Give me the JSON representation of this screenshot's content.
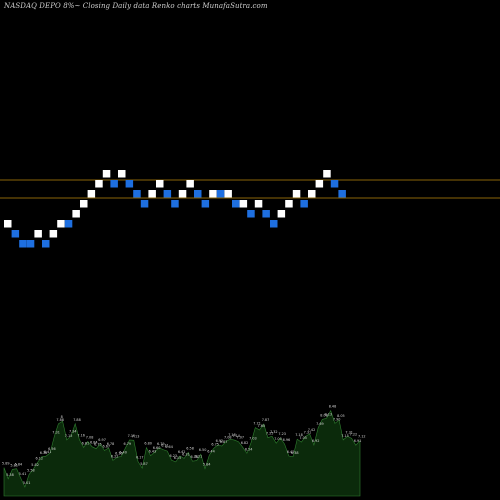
{
  "title": "NASDAQ DEPO 8%~  Closing Daily data  Renko  charts MunafaSutra.com",
  "colors": {
    "background": "#000000",
    "up_brick": "#ffffff",
    "down_brick": "#1e6fe0",
    "reference_line": "#b8860b",
    "volume_fill": "#0b2a0b",
    "volume_edge": "#2f7f2f",
    "volume_label": "#d6d6d6"
  },
  "chart_data": [
    {
      "type": "renko",
      "title": "NASDAQ DEPO 8%~  Closing Daily data  Renko  charts MunafaSutra.com",
      "reference_lines": [
        12.5,
        11.5
      ],
      "bricks": [
        {
          "value": 10.5,
          "dir": "up"
        },
        {
          "value": 10.0,
          "dir": "down"
        },
        {
          "value": 9.5,
          "dir": "down"
        },
        {
          "value": 9.5,
          "dir": "down"
        },
        {
          "value": 10.0,
          "dir": "up"
        },
        {
          "value": 9.5,
          "dir": "down"
        },
        {
          "value": 10.0,
          "dir": "up"
        },
        {
          "value": 10.5,
          "dir": "up"
        },
        {
          "value": 10.5,
          "dir": "down"
        },
        {
          "value": 11.0,
          "dir": "up"
        },
        {
          "value": 11.5,
          "dir": "up"
        },
        {
          "value": 12.0,
          "dir": "up"
        },
        {
          "value": 12.5,
          "dir": "up"
        },
        {
          "value": 13.0,
          "dir": "up"
        },
        {
          "value": 12.5,
          "dir": "down"
        },
        {
          "value": 13.0,
          "dir": "up"
        },
        {
          "value": 12.5,
          "dir": "down"
        },
        {
          "value": 12.0,
          "dir": "down"
        },
        {
          "value": 11.5,
          "dir": "down"
        },
        {
          "value": 12.0,
          "dir": "up"
        },
        {
          "value": 12.5,
          "dir": "up"
        },
        {
          "value": 12.0,
          "dir": "down"
        },
        {
          "value": 11.5,
          "dir": "down"
        },
        {
          "value": 12.0,
          "dir": "up"
        },
        {
          "value": 12.5,
          "dir": "up"
        },
        {
          "value": 12.0,
          "dir": "down"
        },
        {
          "value": 11.5,
          "dir": "down"
        },
        {
          "value": 12.0,
          "dir": "up"
        },
        {
          "value": 12.0,
          "dir": "down"
        },
        {
          "value": 12.0,
          "dir": "up"
        },
        {
          "value": 11.5,
          "dir": "down"
        },
        {
          "value": 11.5,
          "dir": "up"
        },
        {
          "value": 11.0,
          "dir": "down"
        },
        {
          "value": 11.5,
          "dir": "up"
        },
        {
          "value": 11.0,
          "dir": "down"
        },
        {
          "value": 10.5,
          "dir": "down"
        },
        {
          "value": 11.0,
          "dir": "up"
        },
        {
          "value": 11.5,
          "dir": "up"
        },
        {
          "value": 12.0,
          "dir": "up"
        },
        {
          "value": 11.5,
          "dir": "down"
        },
        {
          "value": 12.0,
          "dir": "up"
        },
        {
          "value": 12.5,
          "dir": "up"
        },
        {
          "value": 13.0,
          "dir": "up"
        },
        {
          "value": 12.5,
          "dir": "down"
        },
        {
          "value": 12.0,
          "dir": "down"
        }
      ]
    },
    {
      "type": "area",
      "labels": [
        "5.89",
        "5.38",
        "5.81",
        "5.84",
        "5.41",
        "5.01",
        "5.58",
        "5.82",
        "6.12",
        "6.38",
        "6.41",
        "6.56",
        "7.31",
        "7.88",
        "8",
        "7.15",
        "7.34",
        "7.88",
        "7.16",
        "6.81",
        "7.08",
        "6.84",
        "6.75",
        "6.97",
        "6.67",
        "6.78",
        "6.22",
        "6.36",
        "6.40",
        "6.79",
        "7.15",
        "7.13",
        "6.17",
        "5.87",
        "6.80",
        "6.43",
        "6.60",
        "6.79",
        "6.71",
        "6.64",
        "6.23",
        "6.15",
        "6.42",
        "6.31",
        "6.58",
        "6.18",
        "6.21",
        "6.50",
        "5.84",
        "6.44",
        "6.75",
        "6.92",
        "6.87",
        "7.08",
        "7.18",
        "7.14",
        "7.07",
        "6.82",
        "6.54",
        "7.03",
        "7.71",
        "7.60",
        "7.87",
        "7.25",
        "7.32",
        "7.00",
        "7.23",
        "6.96",
        "6.42",
        "6.38",
        "7.18",
        "7.05",
        "7.31",
        "7.42",
        "6.92",
        "7.69",
        "8.08",
        "8.13",
        "8.48",
        "7.90",
        "8.05",
        "7.15",
        "7.31",
        "7.22",
        "6.91",
        "7.12"
      ],
      "values": [
        5.89,
        5.38,
        5.81,
        5.84,
        5.41,
        5.01,
        5.58,
        5.82,
        6.12,
        6.38,
        6.41,
        6.56,
        7.31,
        7.88,
        8,
        7.15,
        7.34,
        7.88,
        7.16,
        6.81,
        7.08,
        6.84,
        6.75,
        6.97,
        6.67,
        6.78,
        6.22,
        6.36,
        6.4,
        6.79,
        7.15,
        7.13,
        6.17,
        5.87,
        6.8,
        6.43,
        6.6,
        6.79,
        6.71,
        6.64,
        6.23,
        6.15,
        6.42,
        6.31,
        6.58,
        6.18,
        6.21,
        6.5,
        5.84,
        6.44,
        6.75,
        6.92,
        6.87,
        7.08,
        7.18,
        7.14,
        7.07,
        6.82,
        6.54,
        7.03,
        7.71,
        7.6,
        7.87,
        7.25,
        7.32,
        7.0,
        7.23,
        6.96,
        6.42,
        6.38,
        7.18,
        7.05,
        7.31,
        7.42,
        6.92,
        7.69,
        8.08,
        8.13,
        8.48,
        7.9,
        8.05,
        7.15,
        7.31,
        7.22,
        6.91,
        7.12
      ]
    }
  ]
}
